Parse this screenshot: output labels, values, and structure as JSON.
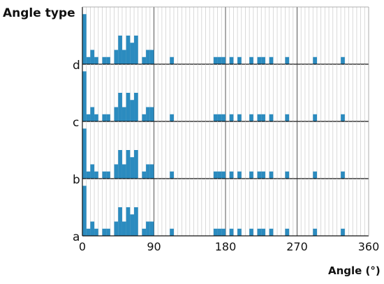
{
  "chart_data": {
    "type": "bar",
    "ylabel": "Angle type",
    "xlabel": "Angle (°)",
    "xlim": [
      0,
      360
    ],
    "xticks": [
      "0",
      "90",
      "180",
      "270",
      "360"
    ],
    "bin_width": 5,
    "bar_color": "#2b8bbf",
    "panels": [
      {
        "name": "d",
        "bins": [
          {
            "x": 0,
            "count": 7
          },
          {
            "x": 5,
            "count": 1
          },
          {
            "x": 10,
            "count": 2
          },
          {
            "x": 15,
            "count": 1
          },
          {
            "x": 25,
            "count": 1
          },
          {
            "x": 30,
            "count": 1
          },
          {
            "x": 40,
            "count": 2
          },
          {
            "x": 45,
            "count": 4
          },
          {
            "x": 50,
            "count": 2
          },
          {
            "x": 55,
            "count": 4
          },
          {
            "x": 60,
            "count": 3
          },
          {
            "x": 65,
            "count": 4
          },
          {
            "x": 75,
            "count": 1
          },
          {
            "x": 80,
            "count": 2
          },
          {
            "x": 85,
            "count": 2
          },
          {
            "x": 110,
            "count": 1
          },
          {
            "x": 165,
            "count": 1
          },
          {
            "x": 170,
            "count": 1
          },
          {
            "x": 175,
            "count": 1
          },
          {
            "x": 185,
            "count": 1
          },
          {
            "x": 195,
            "count": 1
          },
          {
            "x": 210,
            "count": 1
          },
          {
            "x": 220,
            "count": 1
          },
          {
            "x": 225,
            "count": 1
          },
          {
            "x": 235,
            "count": 1
          },
          {
            "x": 255,
            "count": 1
          },
          {
            "x": 290,
            "count": 1
          },
          {
            "x": 325,
            "count": 1
          }
        ]
      },
      {
        "name": "c",
        "bins": [
          {
            "x": 0,
            "count": 7
          },
          {
            "x": 5,
            "count": 1
          },
          {
            "x": 10,
            "count": 2
          },
          {
            "x": 15,
            "count": 1
          },
          {
            "x": 25,
            "count": 1
          },
          {
            "x": 30,
            "count": 1
          },
          {
            "x": 40,
            "count": 2
          },
          {
            "x": 45,
            "count": 4
          },
          {
            "x": 50,
            "count": 2
          },
          {
            "x": 55,
            "count": 4
          },
          {
            "x": 60,
            "count": 3
          },
          {
            "x": 65,
            "count": 4
          },
          {
            "x": 75,
            "count": 1
          },
          {
            "x": 80,
            "count": 2
          },
          {
            "x": 85,
            "count": 2
          },
          {
            "x": 110,
            "count": 1
          },
          {
            "x": 165,
            "count": 1
          },
          {
            "x": 170,
            "count": 1
          },
          {
            "x": 175,
            "count": 1
          },
          {
            "x": 185,
            "count": 1
          },
          {
            "x": 195,
            "count": 1
          },
          {
            "x": 210,
            "count": 1
          },
          {
            "x": 220,
            "count": 1
          },
          {
            "x": 225,
            "count": 1
          },
          {
            "x": 235,
            "count": 1
          },
          {
            "x": 255,
            "count": 1
          },
          {
            "x": 290,
            "count": 1
          },
          {
            "x": 325,
            "count": 1
          }
        ]
      },
      {
        "name": "b",
        "bins": [
          {
            "x": 0,
            "count": 7
          },
          {
            "x": 5,
            "count": 1
          },
          {
            "x": 10,
            "count": 2
          },
          {
            "x": 15,
            "count": 1
          },
          {
            "x": 25,
            "count": 1
          },
          {
            "x": 30,
            "count": 1
          },
          {
            "x": 40,
            "count": 2
          },
          {
            "x": 45,
            "count": 4
          },
          {
            "x": 50,
            "count": 2
          },
          {
            "x": 55,
            "count": 4
          },
          {
            "x": 60,
            "count": 3
          },
          {
            "x": 65,
            "count": 4
          },
          {
            "x": 75,
            "count": 1
          },
          {
            "x": 80,
            "count": 2
          },
          {
            "x": 85,
            "count": 2
          },
          {
            "x": 110,
            "count": 1
          },
          {
            "x": 165,
            "count": 1
          },
          {
            "x": 170,
            "count": 1
          },
          {
            "x": 175,
            "count": 1
          },
          {
            "x": 185,
            "count": 1
          },
          {
            "x": 195,
            "count": 1
          },
          {
            "x": 210,
            "count": 1
          },
          {
            "x": 220,
            "count": 1
          },
          {
            "x": 225,
            "count": 1
          },
          {
            "x": 235,
            "count": 1
          },
          {
            "x": 255,
            "count": 1
          },
          {
            "x": 290,
            "count": 1
          },
          {
            "x": 325,
            "count": 1
          }
        ]
      },
      {
        "name": "a",
        "bins": [
          {
            "x": 0,
            "count": 7
          },
          {
            "x": 5,
            "count": 1
          },
          {
            "x": 10,
            "count": 2
          },
          {
            "x": 15,
            "count": 1
          },
          {
            "x": 25,
            "count": 1
          },
          {
            "x": 30,
            "count": 1
          },
          {
            "x": 40,
            "count": 2
          },
          {
            "x": 45,
            "count": 4
          },
          {
            "x": 50,
            "count": 2
          },
          {
            "x": 55,
            "count": 4
          },
          {
            "x": 60,
            "count": 3
          },
          {
            "x": 65,
            "count": 4
          },
          {
            "x": 75,
            "count": 1
          },
          {
            "x": 80,
            "count": 2
          },
          {
            "x": 85,
            "count": 2
          },
          {
            "x": 110,
            "count": 1
          },
          {
            "x": 165,
            "count": 1
          },
          {
            "x": 170,
            "count": 1
          },
          {
            "x": 175,
            "count": 1
          },
          {
            "x": 185,
            "count": 1
          },
          {
            "x": 195,
            "count": 1
          },
          {
            "x": 210,
            "count": 1
          },
          {
            "x": 220,
            "count": 1
          },
          {
            "x": 225,
            "count": 1
          },
          {
            "x": 235,
            "count": 1
          },
          {
            "x": 255,
            "count": 1
          },
          {
            "x": 290,
            "count": 1
          },
          {
            "x": 325,
            "count": 1
          }
        ]
      }
    ]
  }
}
